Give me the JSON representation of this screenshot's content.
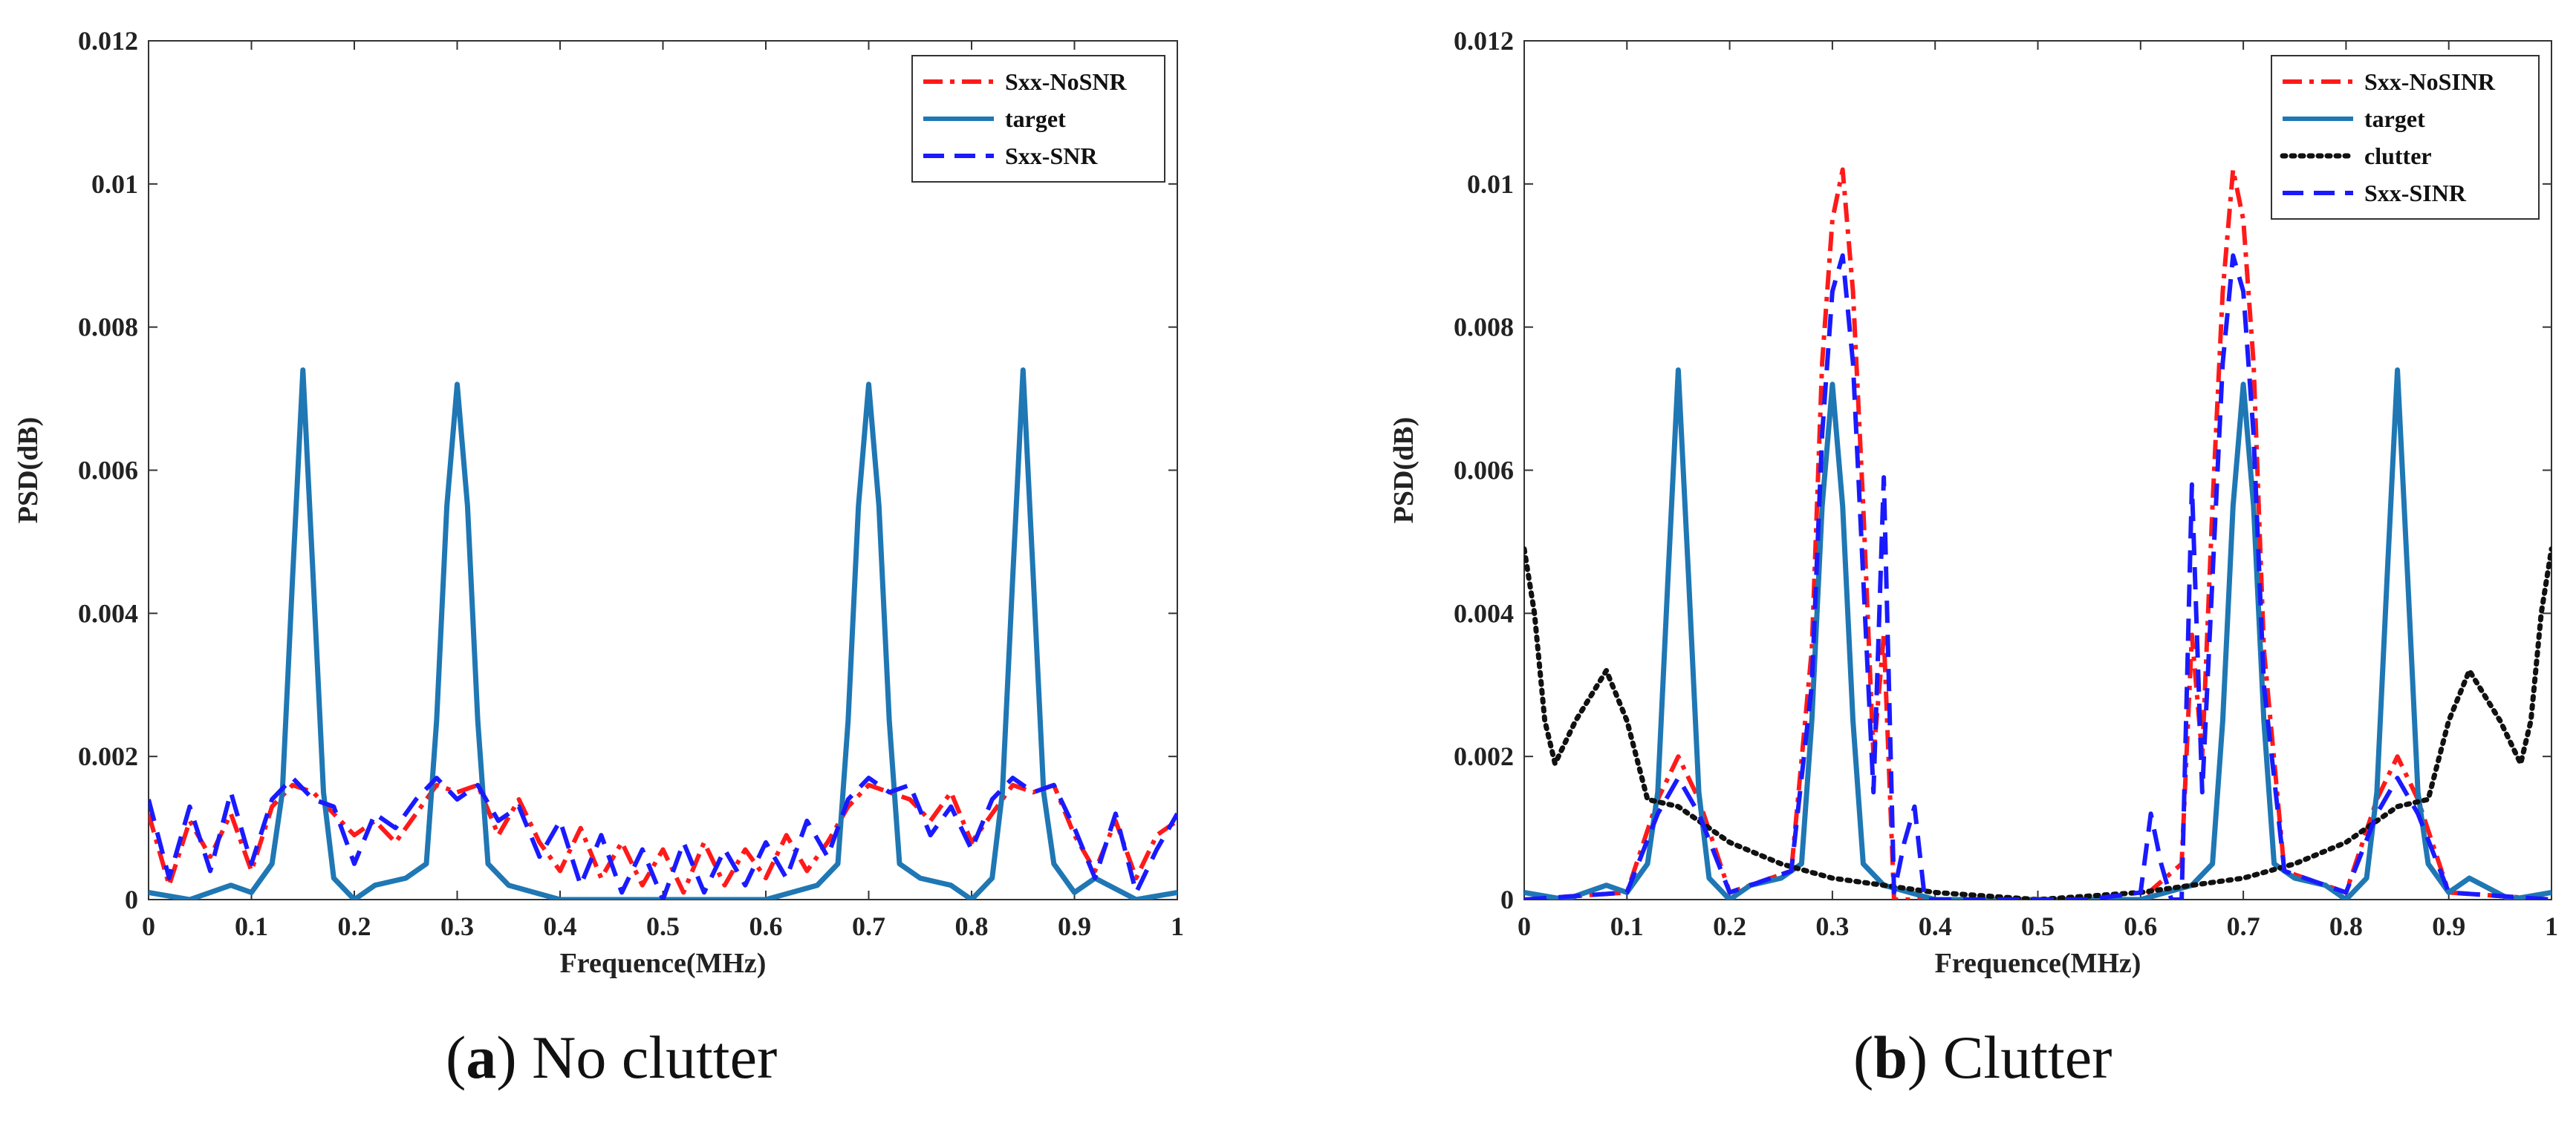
{
  "chart_data": [
    {
      "type": "line",
      "id": "a",
      "caption": {
        "letter": "a",
        "text": "No clutter"
      },
      "xlabel": "Frequence(MHz)",
      "ylabel": "PSD(dB)",
      "xlim": [
        0,
        1
      ],
      "ylim": [
        0,
        0.012
      ],
      "x_ticks": [
        "0",
        "0.1",
        "0.2",
        "0.3",
        "0.4",
        "0.5",
        "0.6",
        "0.7",
        "0.8",
        "0.9",
        "1"
      ],
      "y_ticks": [
        "0",
        "0.002",
        "0.004",
        "0.006",
        "0.008",
        "0.01",
        "0.012"
      ],
      "legend": {
        "position": "top-right",
        "entries": [
          "Sxx-NoSNR",
          "target",
          "Sxx-SNR"
        ]
      },
      "series": [
        {
          "name": "Sxx-NoSNR",
          "color": "#ff1a1a",
          "style": "dashdot",
          "x": [
            0,
            0.02,
            0.04,
            0.06,
            0.08,
            0.1,
            0.12,
            0.14,
            0.16,
            0.18,
            0.2,
            0.22,
            0.24,
            0.26,
            0.28,
            0.3,
            0.32,
            0.34,
            0.36,
            0.38,
            0.4,
            0.42,
            0.44,
            0.46,
            0.48,
            0.5,
            0.52,
            0.54,
            0.56,
            0.58,
            0.6,
            0.62,
            0.64,
            0.66,
            0.68,
            0.7,
            0.72,
            0.74,
            0.76,
            0.78,
            0.8,
            0.82,
            0.84,
            0.86,
            0.88,
            0.9,
            0.92,
            0.94,
            0.96,
            0.98,
            1
          ],
          "y": [
            0.0012,
            0.0002,
            0.0011,
            0.0006,
            0.0012,
            0.0004,
            0.0013,
            0.0016,
            0.0015,
            0.0012,
            0.0009,
            0.0011,
            0.0008,
            0.0012,
            0.0016,
            0.0015,
            0.0016,
            0.0009,
            0.0014,
            0.0008,
            0.0004,
            0.001,
            0.0003,
            0.0008,
            0.0002,
            0.0007,
            0.0001,
            0.0008,
            0.0002,
            0.0007,
            0.0003,
            0.0009,
            0.0004,
            0.0008,
            0.0013,
            0.0016,
            0.0015,
            0.0014,
            0.0011,
            0.0015,
            0.0008,
            0.0012,
            0.0016,
            0.0015,
            0.0016,
            0.0009,
            0.0004,
            0.0011,
            0.0003,
            0.0009,
            0.0011
          ]
        },
        {
          "name": "target",
          "color": "#1f77b4",
          "style": "solid",
          "x": [
            0,
            0.04,
            0.08,
            0.1,
            0.12,
            0.13,
            0.14,
            0.15,
            0.16,
            0.17,
            0.18,
            0.2,
            0.22,
            0.25,
            0.27,
            0.28,
            0.29,
            0.3,
            0.31,
            0.32,
            0.33,
            0.35,
            0.4,
            0.5,
            0.6,
            0.65,
            0.67,
            0.68,
            0.69,
            0.7,
            0.71,
            0.72,
            0.73,
            0.75,
            0.78,
            0.8,
            0.82,
            0.83,
            0.84,
            0.85,
            0.86,
            0.87,
            0.88,
            0.9,
            0.92,
            0.96,
            1
          ],
          "y": [
            0.0001,
            0.0,
            0.0002,
            0.0001,
            0.0005,
            0.0015,
            0.0045,
            0.0074,
            0.0045,
            0.0015,
            0.0003,
            0.0,
            0.0002,
            0.0003,
            0.0005,
            0.0025,
            0.0055,
            0.0072,
            0.0055,
            0.0025,
            0.0005,
            0.0002,
            0.0,
            0.0,
            0.0,
            0.0002,
            0.0005,
            0.0025,
            0.0055,
            0.0072,
            0.0055,
            0.0025,
            0.0005,
            0.0003,
            0.0002,
            0.0,
            0.0003,
            0.0015,
            0.0045,
            0.0074,
            0.0045,
            0.0015,
            0.0005,
            0.0001,
            0.0003,
            0.0,
            0.0001
          ]
        },
        {
          "name": "Sxx-SNR",
          "color": "#1a1aff",
          "style": "dashed",
          "x": [
            0,
            0.02,
            0.04,
            0.06,
            0.08,
            0.1,
            0.12,
            0.14,
            0.16,
            0.18,
            0.2,
            0.22,
            0.24,
            0.26,
            0.28,
            0.3,
            0.32,
            0.34,
            0.36,
            0.38,
            0.4,
            0.42,
            0.44,
            0.46,
            0.48,
            0.5,
            0.52,
            0.54,
            0.56,
            0.58,
            0.6,
            0.62,
            0.64,
            0.66,
            0.68,
            0.7,
            0.72,
            0.74,
            0.76,
            0.78,
            0.8,
            0.82,
            0.84,
            0.86,
            0.88,
            0.9,
            0.92,
            0.94,
            0.96,
            0.98,
            1
          ],
          "y": [
            0.0014,
            0.0003,
            0.0013,
            0.0004,
            0.0015,
            0.0005,
            0.0014,
            0.0017,
            0.0014,
            0.0013,
            0.0005,
            0.0012,
            0.001,
            0.0014,
            0.0017,
            0.0014,
            0.0016,
            0.0011,
            0.0013,
            0.0006,
            0.0011,
            0.0002,
            0.0009,
            0.0001,
            0.0007,
            0.0,
            0.0008,
            0.0001,
            0.0007,
            0.0002,
            0.0008,
            0.0003,
            0.0011,
            0.0006,
            0.0014,
            0.0017,
            0.0015,
            0.0016,
            0.0009,
            0.0013,
            0.0007,
            0.0014,
            0.0017,
            0.0015,
            0.0016,
            0.001,
            0.0003,
            0.0012,
            0.0001,
            0.0007,
            0.0012
          ]
        }
      ]
    },
    {
      "type": "line",
      "id": "b",
      "caption": {
        "letter": "b",
        "text": "Clutter"
      },
      "xlabel": "Frequence(MHz)",
      "ylabel": "PSD(dB)",
      "xlim": [
        0,
        1
      ],
      "ylim": [
        0,
        0.012
      ],
      "x_ticks": [
        "0",
        "0.1",
        "0.2",
        "0.3",
        "0.4",
        "0.5",
        "0.6",
        "0.7",
        "0.8",
        "0.9",
        "1"
      ],
      "y_ticks": [
        "0",
        "0.002",
        "0.004",
        "0.006",
        "0.008",
        "0.01",
        "0.012"
      ],
      "legend": {
        "position": "top-right",
        "entries": [
          "Sxx-NoSINR",
          "target",
          "clutter",
          "Sxx-SINR"
        ]
      },
      "series": [
        {
          "name": "Sxx-NoSINR",
          "color": "#ff1a1a",
          "style": "dashdot",
          "x": [
            0,
            0.1,
            0.13,
            0.15,
            0.17,
            0.2,
            0.26,
            0.28,
            0.29,
            0.3,
            0.31,
            0.32,
            0.33,
            0.34,
            0.35,
            0.36,
            0.38,
            0.45,
            0.6,
            0.64,
            0.65,
            0.66,
            0.67,
            0.68,
            0.69,
            0.7,
            0.71,
            0.72,
            0.74,
            0.8,
            0.83,
            0.85,
            0.87,
            0.9,
            1
          ],
          "y": [
            0.0,
            0.0001,
            0.0014,
            0.002,
            0.0014,
            0.0001,
            0.0004,
            0.0035,
            0.0075,
            0.0095,
            0.0102,
            0.0085,
            0.0055,
            0.002,
            0.0037,
            0.0,
            0.0,
            0.0,
            0.0,
            0.0005,
            0.0037,
            0.002,
            0.0055,
            0.0085,
            0.0102,
            0.0095,
            0.0075,
            0.0035,
            0.0004,
            0.0001,
            0.0014,
            0.002,
            0.0014,
            0.0001,
            0.0
          ]
        },
        {
          "name": "target",
          "color": "#1f77b4",
          "style": "solid",
          "x": [
            0,
            0.04,
            0.08,
            0.1,
            0.12,
            0.13,
            0.14,
            0.15,
            0.16,
            0.17,
            0.18,
            0.2,
            0.22,
            0.25,
            0.27,
            0.28,
            0.29,
            0.3,
            0.31,
            0.32,
            0.33,
            0.35,
            0.4,
            0.5,
            0.6,
            0.65,
            0.67,
            0.68,
            0.69,
            0.7,
            0.71,
            0.72,
            0.73,
            0.75,
            0.78,
            0.8,
            0.82,
            0.83,
            0.84,
            0.85,
            0.86,
            0.87,
            0.88,
            0.9,
            0.92,
            0.96,
            1
          ],
          "y": [
            0.0001,
            0.0,
            0.0002,
            0.0001,
            0.0005,
            0.0015,
            0.0045,
            0.0074,
            0.0045,
            0.0015,
            0.0003,
            0.0,
            0.0002,
            0.0003,
            0.0005,
            0.0025,
            0.0055,
            0.0072,
            0.0055,
            0.0025,
            0.0005,
            0.0002,
            0.0,
            0.0,
            0.0,
            0.0002,
            0.0005,
            0.0025,
            0.0055,
            0.0072,
            0.0055,
            0.0025,
            0.0005,
            0.0003,
            0.0002,
            0.0,
            0.0003,
            0.0015,
            0.0045,
            0.0074,
            0.0045,
            0.0015,
            0.0005,
            0.0001,
            0.0003,
            0.0,
            0.0001
          ]
        },
        {
          "name": "clutter",
          "color": "#111111",
          "style": "dotted",
          "x": [
            0,
            0.01,
            0.02,
            0.03,
            0.05,
            0.08,
            0.1,
            0.12,
            0.15,
            0.2,
            0.25,
            0.3,
            0.35,
            0.4,
            0.5,
            0.6,
            0.65,
            0.7,
            0.75,
            0.8,
            0.85,
            0.88,
            0.9,
            0.92,
            0.95,
            0.97,
            0.98,
            0.99,
            1
          ],
          "y": [
            0.0049,
            0.004,
            0.0025,
            0.0019,
            0.0025,
            0.0032,
            0.0025,
            0.0014,
            0.0013,
            0.0008,
            0.0005,
            0.0003,
            0.0002,
            0.0001,
            0.0,
            0.0001,
            0.0002,
            0.0003,
            0.0005,
            0.0008,
            0.0013,
            0.0014,
            0.0025,
            0.0032,
            0.0025,
            0.0019,
            0.0025,
            0.004,
            0.0049
          ]
        },
        {
          "name": "Sxx-SINR",
          "color": "#1a1aff",
          "style": "dashed",
          "x": [
            0,
            0.1,
            0.13,
            0.15,
            0.17,
            0.2,
            0.26,
            0.28,
            0.29,
            0.3,
            0.31,
            0.32,
            0.33,
            0.34,
            0.35,
            0.36,
            0.37,
            0.38,
            0.39,
            0.45,
            0.55,
            0.6,
            0.61,
            0.62,
            0.63,
            0.64,
            0.65,
            0.66,
            0.67,
            0.68,
            0.69,
            0.7,
            0.71,
            0.72,
            0.74,
            0.8,
            0.83,
            0.85,
            0.87,
            0.9,
            1
          ],
          "y": [
            0.0,
            0.0001,
            0.0012,
            0.0017,
            0.0012,
            0.0001,
            0.0004,
            0.003,
            0.0065,
            0.0085,
            0.009,
            0.0075,
            0.0045,
            0.0015,
            0.0059,
            0.0001,
            0.0008,
            0.0013,
            0.0,
            0.0,
            0.0,
            0.0001,
            0.0012,
            0.0005,
            0.0,
            0.0,
            0.0058,
            0.0015,
            0.0045,
            0.0075,
            0.009,
            0.0085,
            0.0065,
            0.003,
            0.0004,
            0.0001,
            0.0012,
            0.0017,
            0.0012,
            0.0001,
            0.0
          ]
        }
      ]
    }
  ]
}
